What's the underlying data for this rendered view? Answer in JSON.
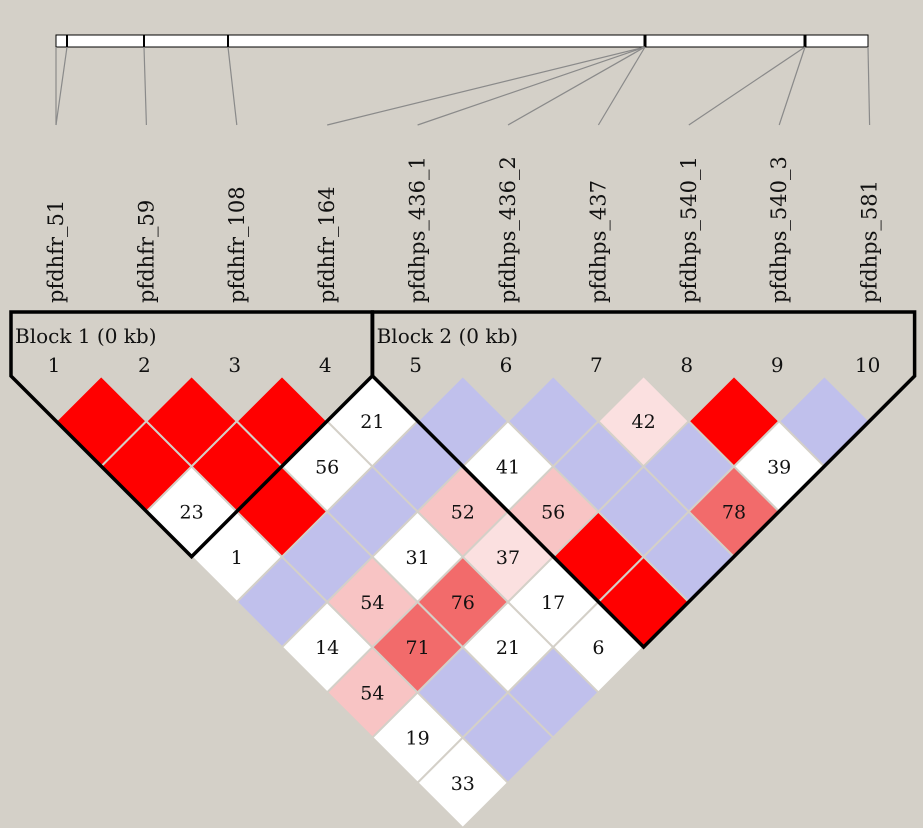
{
  "markers": [
    {
      "index": "1",
      "name": "pfdhfr_51"
    },
    {
      "index": "2",
      "name": "pfdhfr_59"
    },
    {
      "index": "3",
      "name": "pfdhfr_108"
    },
    {
      "index": "4",
      "name": "pfdhfr_164"
    },
    {
      "index": "5",
      "name": "pfdhps_436_1"
    },
    {
      "index": "6",
      "name": "pfdhps_436_2"
    },
    {
      "index": "7",
      "name": "pfdhps_437"
    },
    {
      "index": "8",
      "name": "pfdhps_540_1"
    },
    {
      "index": "9",
      "name": "pfdhps_540_3"
    },
    {
      "index": "10",
      "name": "pfdhps_581"
    }
  ],
  "blocks": [
    {
      "label": "Block  1  (0 kb)",
      "markers": [
        1,
        4
      ]
    },
    {
      "label": "Block  2  (0 kb)",
      "markers": [
        5,
        10
      ]
    }
  ],
  "colors": {
    "background": "#d4d0c8",
    "strong_ld": "#ff0000",
    "high_ld": "#f26b6b",
    "moderate_ld": "#f8c4c4",
    "weak_ld": "#fbe0e0",
    "no_evidence": "#ffffff",
    "uninformative": "#c0c0ec"
  },
  "chart_data": {
    "type": "heatmap",
    "cells": [
      {
        "i": 1,
        "j": 2,
        "value": "",
        "color": "strong_ld"
      },
      {
        "i": 1,
        "j": 3,
        "value": "",
        "color": "strong_ld"
      },
      {
        "i": 1,
        "j": 4,
        "value": "23",
        "color": "no_evidence"
      },
      {
        "i": 1,
        "j": 5,
        "value": "1",
        "color": "no_evidence"
      },
      {
        "i": 1,
        "j": 6,
        "value": "",
        "color": "uninformative"
      },
      {
        "i": 1,
        "j": 7,
        "value": "14",
        "color": "no_evidence"
      },
      {
        "i": 1,
        "j": 8,
        "value": "54",
        "color": "moderate_ld"
      },
      {
        "i": 1,
        "j": 9,
        "value": "19",
        "color": "no_evidence"
      },
      {
        "i": 1,
        "j": 10,
        "value": "33",
        "color": "no_evidence"
      },
      {
        "i": 2,
        "j": 3,
        "value": "",
        "color": "strong_ld"
      },
      {
        "i": 2,
        "j": 4,
        "value": "",
        "color": "strong_ld"
      },
      {
        "i": 2,
        "j": 5,
        "value": "",
        "color": "strong_ld"
      },
      {
        "i": 2,
        "j": 6,
        "value": "",
        "color": "uninformative"
      },
      {
        "i": 2,
        "j": 7,
        "value": "54",
        "color": "moderate_ld"
      },
      {
        "i": 2,
        "j": 8,
        "value": "71",
        "color": "high_ld"
      },
      {
        "i": 2,
        "j": 9,
        "value": "",
        "color": "uninformative"
      },
      {
        "i": 2,
        "j": 10,
        "value": "",
        "color": "uninformative"
      },
      {
        "i": 3,
        "j": 4,
        "value": "",
        "color": "strong_ld"
      },
      {
        "i": 3,
        "j": 5,
        "value": "56",
        "color": "no_evidence"
      },
      {
        "i": 3,
        "j": 6,
        "value": "",
        "color": "uninformative"
      },
      {
        "i": 3,
        "j": 7,
        "value": "31",
        "color": "no_evidence"
      },
      {
        "i": 3,
        "j": 8,
        "value": "76",
        "color": "high_ld"
      },
      {
        "i": 3,
        "j": 9,
        "value": "21",
        "color": "no_evidence"
      },
      {
        "i": 3,
        "j": 10,
        "value": "",
        "color": "uninformative"
      },
      {
        "i": 4,
        "j": 5,
        "value": "21",
        "color": "no_evidence"
      },
      {
        "i": 4,
        "j": 6,
        "value": "",
        "color": "uninformative"
      },
      {
        "i": 4,
        "j": 7,
        "value": "52",
        "color": "moderate_ld"
      },
      {
        "i": 4,
        "j": 8,
        "value": "37",
        "color": "weak_ld"
      },
      {
        "i": 4,
        "j": 9,
        "value": "17",
        "color": "no_evidence"
      },
      {
        "i": 4,
        "j": 10,
        "value": "6",
        "color": "no_evidence"
      },
      {
        "i": 5,
        "j": 6,
        "value": "",
        "color": "uninformative"
      },
      {
        "i": 5,
        "j": 7,
        "value": "41",
        "color": "no_evidence"
      },
      {
        "i": 5,
        "j": 8,
        "value": "56",
        "color": "moderate_ld"
      },
      {
        "i": 5,
        "j": 9,
        "value": "",
        "color": "strong_ld"
      },
      {
        "i": 5,
        "j": 10,
        "value": "",
        "color": "strong_ld"
      },
      {
        "i": 6,
        "j": 7,
        "value": "",
        "color": "uninformative"
      },
      {
        "i": 6,
        "j": 8,
        "value": "",
        "color": "uninformative"
      },
      {
        "i": 6,
        "j": 9,
        "value": "",
        "color": "uninformative"
      },
      {
        "i": 6,
        "j": 10,
        "value": "",
        "color": "uninformative"
      },
      {
        "i": 7,
        "j": 8,
        "value": "42",
        "color": "weak_ld"
      },
      {
        "i": 7,
        "j": 9,
        "value": "",
        "color": "uninformative"
      },
      {
        "i": 7,
        "j": 10,
        "value": "78",
        "color": "high_ld"
      },
      {
        "i": 8,
        "j": 9,
        "value": "",
        "color": "strong_ld"
      },
      {
        "i": 8,
        "j": 10,
        "value": "39",
        "color": "no_evidence"
      },
      {
        "i": 9,
        "j": 10,
        "value": "",
        "color": "uninformative"
      }
    ]
  }
}
